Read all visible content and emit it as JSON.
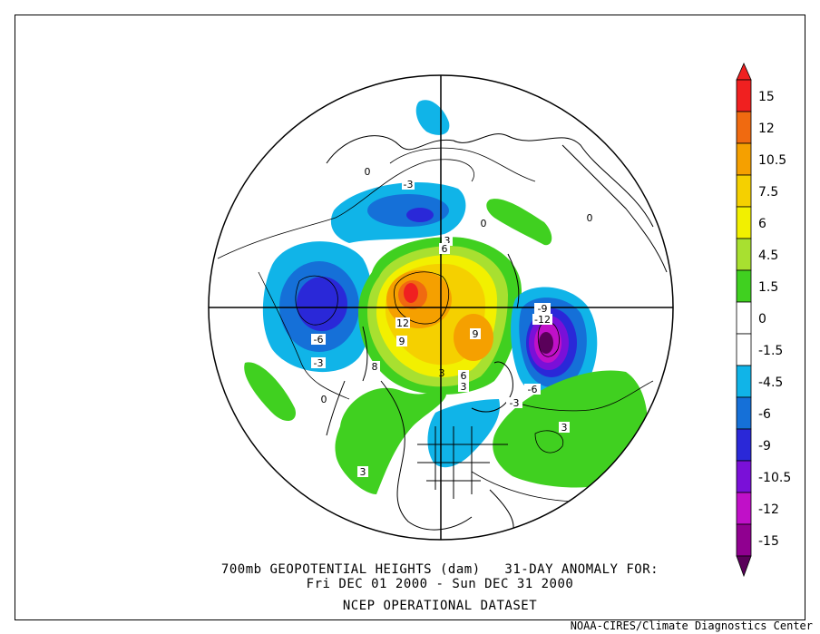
{
  "title": {
    "line1": "700mb GEOPOTENTIAL HEIGHTS (dam)   31-DAY ANOMALY FOR:",
    "line2": "Fri DEC 01 2000 - Sun DEC 31 2000",
    "line3": "NCEP OPERATIONAL DATASET"
  },
  "credit": "NOAA-CIRES/Climate Diagnostics Center",
  "colorbar": {
    "levels": [
      {
        "label": "15",
        "color": "#f02020"
      },
      {
        "label": "12",
        "color": "#f06a10"
      },
      {
        "label": "10.5",
        "color": "#f5a000"
      },
      {
        "label": "7.5",
        "color": "#f5d000"
      },
      {
        "label": "6",
        "color": "#f2f000"
      },
      {
        "label": "4.5",
        "color": "#a8e030"
      },
      {
        "label": "1.5",
        "color": "#40d020"
      },
      {
        "label": "0",
        "color": "#ffffff"
      },
      {
        "label": "-1.5",
        "color": "#ffffff"
      },
      {
        "label": "-4.5",
        "color": "#10b4e8"
      },
      {
        "label": "-6",
        "color": "#1570d8"
      },
      {
        "label": "-9",
        "color": "#2a28d8"
      },
      {
        "label": "-10.5",
        "color": "#7a10d8"
      },
      {
        "label": "-12",
        "color": "#c010c8"
      },
      {
        "label": "-15",
        "color": "#900090"
      }
    ],
    "top_color": "#f02020",
    "bottom_color": "#5a005a"
  },
  "contour_labels": [
    "-3",
    "0",
    "0",
    "3",
    "6",
    "12",
    "9",
    "-6",
    "-3",
    "0",
    "8",
    "3",
    "9",
    "6",
    "3",
    "-9",
    "-12",
    "-6",
    "-3",
    "3",
    "3",
    "0"
  ]
}
